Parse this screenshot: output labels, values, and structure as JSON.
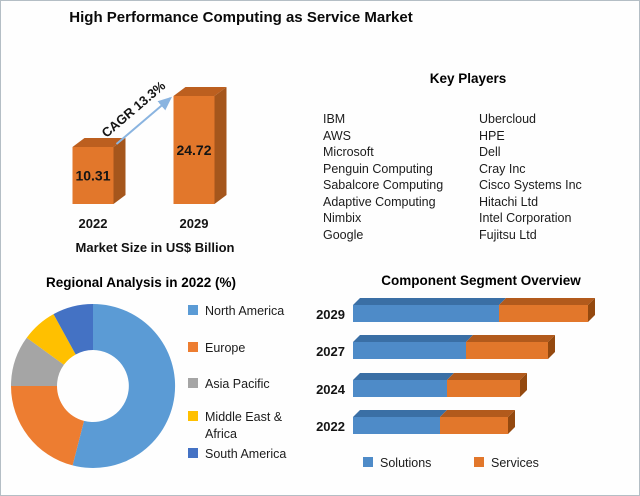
{
  "title": "High Performance Computing as Service Market",
  "key_players": {
    "heading": "Key Players",
    "column1": [
      "IBM",
      "AWS",
      "Microsoft",
      "Penguin Computing",
      "Sabalcore Computing",
      "Adaptive Computing",
      "Nimbix",
      "Google"
    ],
    "column2": [
      "Ubercloud",
      "HPE",
      "Dell",
      "Cray Inc",
      "Cisco Systems Inc",
      "Hitachi Ltd",
      "Intel Corporation",
      "Fujitsu Ltd"
    ]
  },
  "chart_data": [
    {
      "id": "market-size",
      "type": "bar",
      "title": "Market Size in US$ Billion",
      "categories": [
        "2022",
        "2029"
      ],
      "values": [
        10.31,
        24.72
      ],
      "value_labels": [
        "10.31",
        "24.72"
      ],
      "annotation": "CAGR 13.3%",
      "colors": {
        "front": "#e2772b",
        "side": "#a5561c",
        "top": "#bc5f1f",
        "arrow": "#8ab4e0"
      }
    },
    {
      "id": "regional-share",
      "type": "pie",
      "title": "Regional Analysis in 2022 (%)",
      "donut": true,
      "legend_position": "right",
      "slices": [
        {
          "label": "North America",
          "value": 54,
          "color": "#5b9bd5"
        },
        {
          "label": "Europe",
          "value": 21,
          "color": "#ed7d31"
        },
        {
          "label": "Asia Pacific",
          "value": 10,
          "color": "#a5a5a5"
        },
        {
          "label": "Middle East & Africa",
          "value": 7,
          "color": "#ffc000"
        },
        {
          "label": "South America",
          "value": 8,
          "color": "#4472c4"
        }
      ]
    },
    {
      "id": "component-segment",
      "type": "bar",
      "title": "Component Segment Overview",
      "stacked": true,
      "horizontal": true,
      "legend_position": "bottom",
      "categories": [
        "2029",
        "2027",
        "2024",
        "2022"
      ],
      "series": [
        {
          "name": "Solutions",
          "color": "#4e8bc8",
          "top_color": "#3a6fa5",
          "side_color": "#2f5c8a",
          "values": [
            62,
            48,
            40,
            37
          ]
        },
        {
          "name": "Services",
          "color": "#e2772b",
          "top_color": "#b25a1c",
          "side_color": "#94490f",
          "values": [
            38,
            35,
            31,
            29
          ]
        }
      ]
    }
  ]
}
